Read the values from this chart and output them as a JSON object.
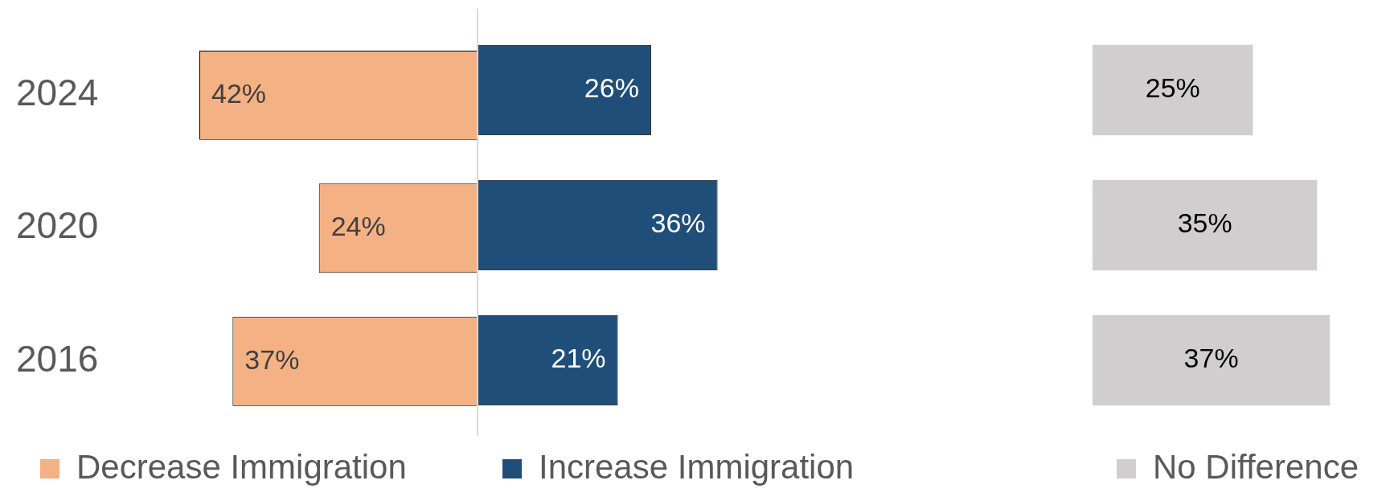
{
  "chart_data": [
    {
      "type": "bar",
      "orientation": "horizontal",
      "categories": [
        "2024",
        "2020",
        "2016"
      ],
      "xlim": [
        42,
        0
      ],
      "tick_labels": "y",
      "grid": false,
      "legend": "bottom",
      "ref_lines": [
        {
          "axis": "x",
          "value": 0,
          "color": "#d9d9d9"
        }
      ],
      "series": [
        {
          "name": "Decrease Immigration",
          "color": "#f4b183",
          "values": [
            42,
            24,
            37
          ],
          "value_labels": [
            "42%",
            "24%",
            "37%"
          ]
        }
      ]
    },
    {
      "type": "bar",
      "orientation": "horizontal",
      "categories": [
        "2024",
        "2020",
        "2016"
      ],
      "tick_labels": false,
      "grid": false,
      "legend": "bottom",
      "series": [
        {
          "name": "Increase Immigration",
          "color": "#1f4e79",
          "values": [
            26,
            36,
            21
          ],
          "value_labels": [
            "26%",
            "36%",
            "21%"
          ]
        }
      ]
    },
    {
      "type": "bar",
      "orientation": "horizontal",
      "categories": [
        "2024",
        "2020",
        "2016"
      ],
      "tick_labels": false,
      "grid": false,
      "legend": "bottom",
      "series": [
        {
          "name": "No Difference",
          "color": "#d0cece",
          "values": [
            25,
            35,
            37
          ],
          "value_labels": [
            "25%",
            "35%",
            "37%"
          ]
        }
      ]
    }
  ]
}
